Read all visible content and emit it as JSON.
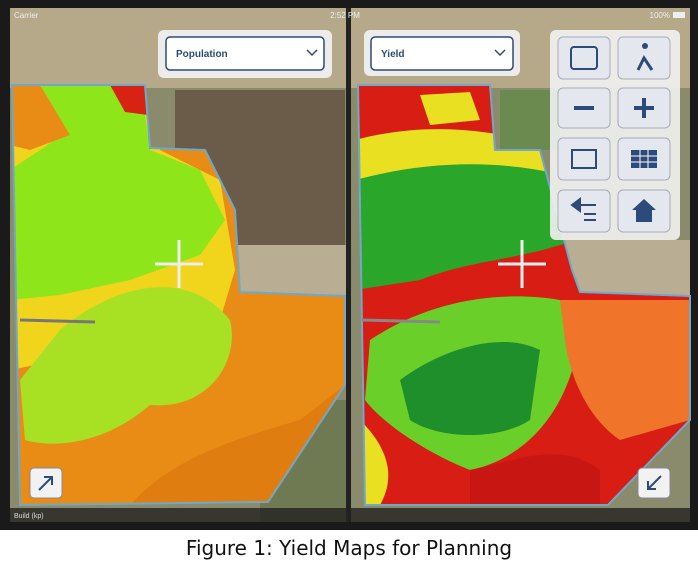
{
  "status_bar": {
    "carrier": "Carrier",
    "time": "2:52 PM",
    "battery": "100%"
  },
  "left_panel": {
    "dropdown": "Population",
    "legend_label": "Build (kp)"
  },
  "right_panel": {
    "dropdown": "Yield"
  },
  "caption": "Figure 1: Yield Maps for Planning"
}
